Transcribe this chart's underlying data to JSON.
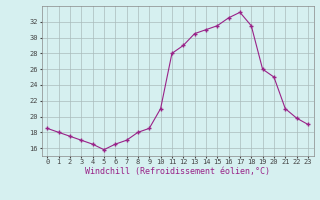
{
  "hours": [
    0,
    1,
    2,
    3,
    4,
    5,
    6,
    7,
    8,
    9,
    10,
    11,
    12,
    13,
    14,
    15,
    16,
    17,
    18,
    19,
    20,
    21,
    22,
    23
  ],
  "values": [
    18.5,
    18.0,
    17.5,
    17.0,
    16.5,
    15.8,
    16.5,
    17.0,
    18.0,
    18.5,
    21.0,
    28.0,
    29.0,
    30.5,
    31.0,
    31.5,
    32.5,
    33.2,
    31.5,
    26.0,
    25.0,
    21.0,
    19.8,
    19.0
  ],
  "line_color": "#992288",
  "marker": "P",
  "bg_color": "#d6f0f0",
  "grid_color": "#aabbbb",
  "xlabel": "Windchill (Refroidissement éolien,°C)",
  "ylim": [
    15.0,
    34.0
  ],
  "xlim": [
    -0.5,
    23.5
  ],
  "yticks": [
    16,
    18,
    20,
    22,
    24,
    26,
    28,
    30,
    32
  ],
  "xticks": [
    0,
    1,
    2,
    3,
    4,
    5,
    6,
    7,
    8,
    9,
    10,
    11,
    12,
    13,
    14,
    15,
    16,
    17,
    18,
    19,
    20,
    21,
    22,
    23
  ],
  "tick_fontsize": 5.0,
  "xlabel_fontsize": 6.0
}
